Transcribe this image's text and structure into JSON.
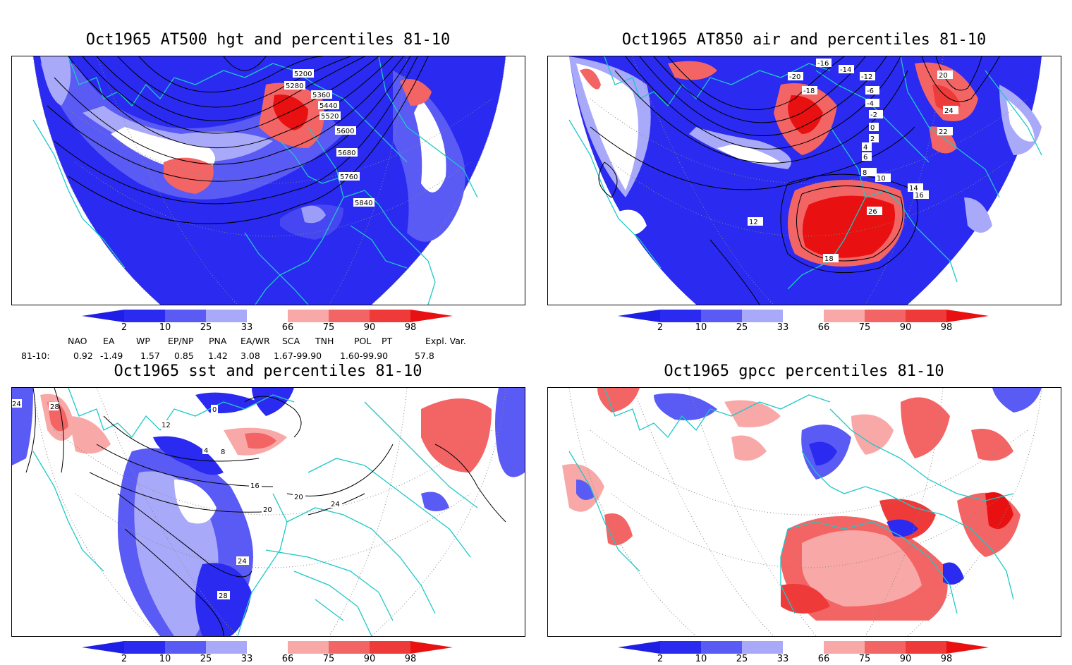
{
  "panels": [
    {
      "title": "Oct1965 AT500 hgt and percentiles 81-10",
      "contour_labels": [
        "5200",
        "5280",
        "5360",
        "5440",
        "5520",
        "5600",
        "5680",
        "5760",
        "5840"
      ]
    },
    {
      "title": "Oct1965 AT850 air and percentiles 81-10",
      "contour_labels": [
        "-16",
        "-14",
        "-12",
        "-20",
        "-18",
        "-6",
        "-4",
        "-2",
        "2",
        "0",
        "4",
        "6",
        "8",
        "10",
        "12",
        "14",
        "16",
        "18",
        "20",
        "22",
        "24",
        "26"
      ]
    },
    {
      "title": "Oct1965 sst and percentiles 81-10",
      "contour_labels": [
        "24",
        "28",
        "12",
        "0",
        "4",
        "8",
        "16",
        "20",
        "24",
        "28",
        "20",
        "24"
      ]
    },
    {
      "title": "Oct1965 gpcc percentiles 81-10",
      "contour_labels": []
    }
  ],
  "colorbar": {
    "ticks": [
      "2",
      "10",
      "25",
      "33",
      "66",
      "75",
      "90",
      "98"
    ],
    "colors": {
      "below_2": "#1e1ee6",
      "2_10": "#2a2af0",
      "10_25": "#5a5af5",
      "25_33": "#a9a9fa",
      "33_66": "#ffffff",
      "66_75": "#f9a8a8",
      "75_90": "#f36464",
      "90_98": "#ef3a3a",
      "above_98": "#e81010"
    }
  },
  "indices": {
    "headers": [
      "NAO",
      "EA",
      "WP",
      "EP/NP",
      "PNA",
      "EA/WR",
      "SCA",
      "TNH",
      "POL",
      "PT",
      "Expl. Var."
    ],
    "row_label": "81-10:",
    "values": [
      "0.92",
      "-1.49",
      "1.57",
      "0.85",
      "1.42",
      "3.08",
      "1.67-99.90",
      "1.60-99.90",
      "57.8"
    ]
  },
  "colors": {
    "coastline": "#1ec8c8",
    "contour": "#000000",
    "grid": "#888888"
  }
}
